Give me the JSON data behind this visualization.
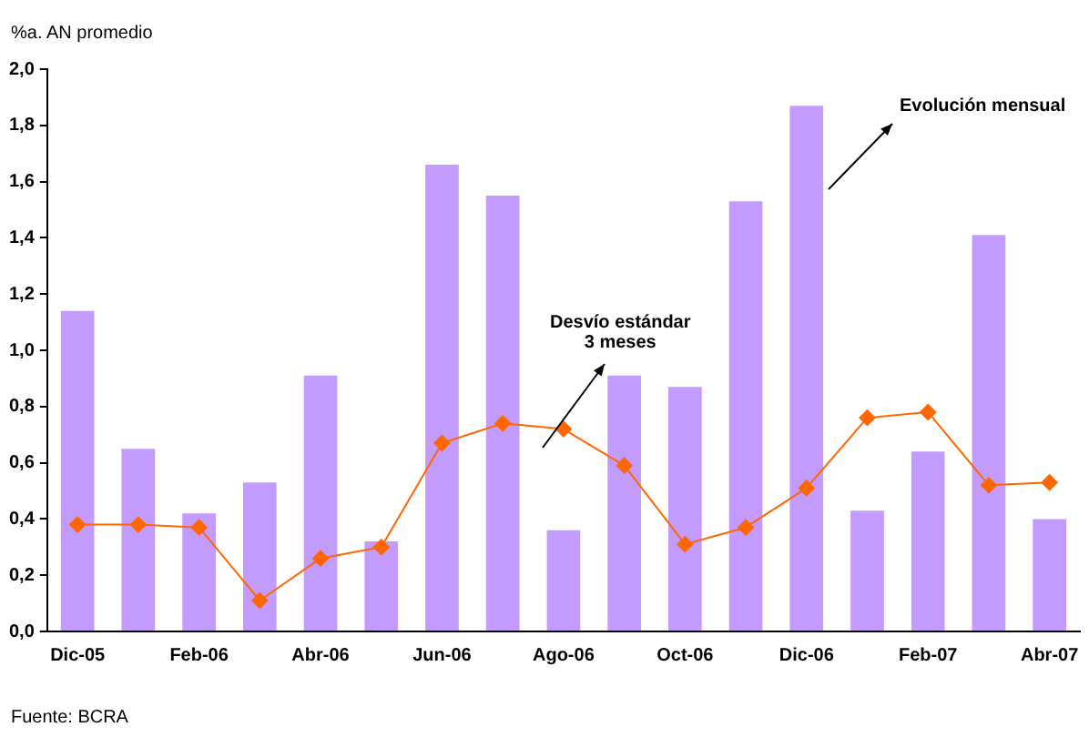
{
  "chart_data": {
    "type": "bar",
    "ylabel": "%a. AN promedio",
    "categories": [
      "Dic-05",
      null,
      "Feb-06",
      null,
      "Abr-06",
      null,
      "Jun-06",
      null,
      "Ago-06",
      null,
      "Oct-06",
      null,
      "Dic-06",
      null,
      "Feb-07",
      null,
      "Abr-07"
    ],
    "series": [
      {
        "color": "#c39bff",
        "values": [
          1.14,
          0.65,
          0.42,
          0.53,
          0.91,
          0.32,
          1.66,
          1.55,
          0.36,
          0.91,
          0.87,
          1.53,
          1.87,
          0.43,
          0.64,
          1.41,
          0.4
        ]
      },
      {
        "type": "line",
        "color": "#ff6600",
        "marker": "diamond",
        "values": [
          0.38,
          0.38,
          0.37,
          0.11,
          0.26,
          0.3,
          0.67,
          0.74,
          0.72,
          0.59,
          0.31,
          0.37,
          0.51,
          0.76,
          0.78,
          0.52,
          0.53
        ]
      }
    ],
    "ylim": [
      0,
      2
    ],
    "yticks": [
      {
        "value": 0,
        "label": "0,0"
      },
      {
        "value": 0.2,
        "label": "0,2"
      },
      {
        "value": 0.4,
        "label": "0,4"
      },
      {
        "value": 0.6,
        "label": "0,6"
      },
      {
        "value": 0.8,
        "label": "0,8"
      },
      {
        "value": 1,
        "label": "1,0"
      },
      {
        "value": 1.2,
        "label": "1,2"
      },
      {
        "value": 1.4,
        "label": "1,4"
      },
      {
        "value": 1.6,
        "label": "1,6"
      },
      {
        "value": 1.8,
        "label": "1,8"
      },
      {
        "value": 2,
        "label": "2,0"
      }
    ],
    "grid": false,
    "legend": false,
    "annotations": [
      "Evolución mensual",
      "Desvío estándar\n3 meses",
      "Fuente: BCRA"
    ]
  }
}
